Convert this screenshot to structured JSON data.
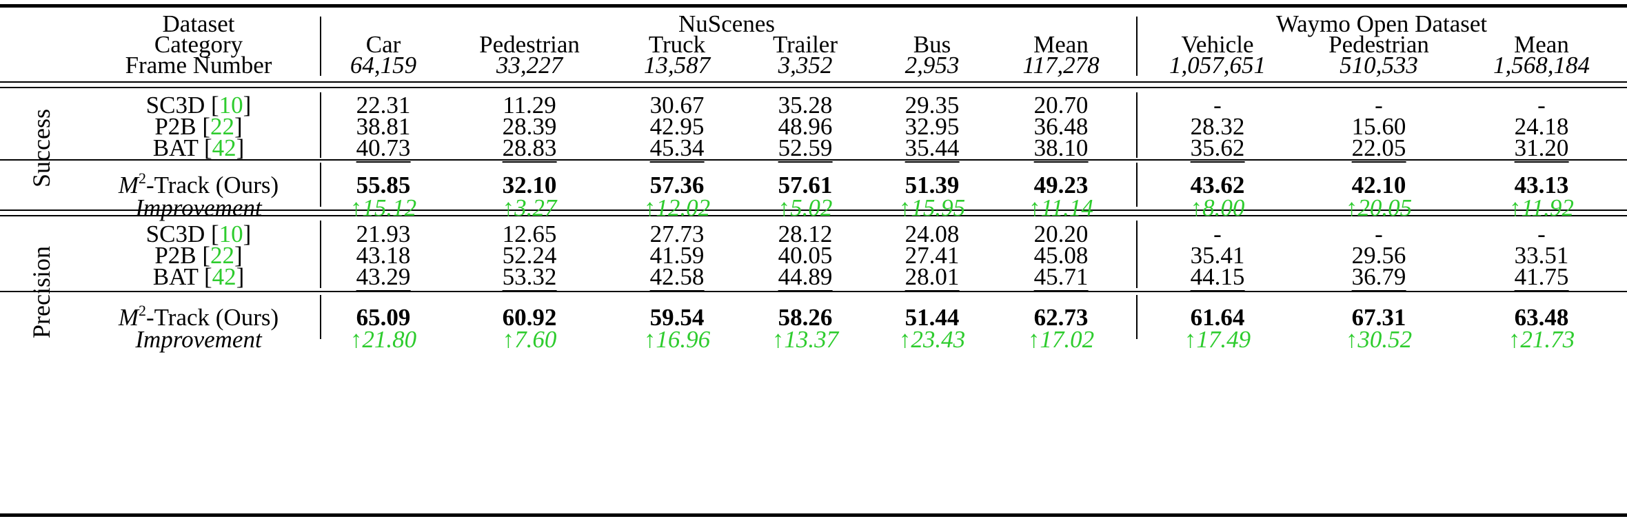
{
  "header": {
    "dataset_label": "Dataset",
    "category_label": "Category",
    "frame_label": "Frame Number",
    "group_nuscenes": "NuScenes",
    "group_waymo": "Waymo Open Dataset",
    "columns": [
      {
        "name": "Car",
        "frames": "64,159"
      },
      {
        "name": "Pedestrian",
        "frames": "33,227"
      },
      {
        "name": "Truck",
        "frames": "13,587"
      },
      {
        "name": "Trailer",
        "frames": "3,352"
      },
      {
        "name": "Bus",
        "frames": "2,953"
      },
      {
        "name": "Mean",
        "frames": "117,278"
      },
      {
        "name": "Vehicle",
        "frames": "1,057,651"
      },
      {
        "name": "Pedestrian",
        "frames": "510,533"
      },
      {
        "name": "Mean",
        "frames": "1,568,184"
      }
    ]
  },
  "sections": [
    {
      "label": "Success",
      "rows": [
        {
          "method": "SC3D",
          "ref": "10",
          "values": [
            "22.31",
            "11.29",
            "30.67",
            "35.28",
            "29.35",
            "20.70",
            "-",
            "-",
            "-"
          ]
        },
        {
          "method": "P2B",
          "ref": "22",
          "values": [
            "38.81",
            "28.39",
            "42.95",
            "48.96",
            "32.95",
            "36.48",
            "28.32",
            "15.60",
            "24.18"
          ]
        },
        {
          "method": "BAT",
          "ref": "42",
          "values": [
            "40.73",
            "28.83",
            "45.34",
            "52.59",
            "35.44",
            "38.10",
            "35.62",
            "22.05",
            "31.20"
          ]
        }
      ],
      "ours": {
        "method_sym": "M",
        "method_sup": "2",
        "method_rest": "-Track (Ours)",
        "values": [
          "55.85",
          "32.10",
          "57.36",
          "57.61",
          "51.39",
          "49.23",
          "43.62",
          "42.10",
          "43.13"
        ]
      },
      "improvement": {
        "label": "Improvement",
        "values": [
          "↑15.12",
          "↑3.27",
          "↑12.02",
          "↑5.02",
          "↑15.95",
          "↑11.14",
          "↑8.00",
          "↑20.05",
          "↑11.92"
        ]
      }
    },
    {
      "label": "Precision",
      "rows": [
        {
          "method": "SC3D",
          "ref": "10",
          "values": [
            "21.93",
            "12.65",
            "27.73",
            "28.12",
            "24.08",
            "20.20",
            "-",
            "-",
            "-"
          ]
        },
        {
          "method": "P2B",
          "ref": "22",
          "values": [
            "43.18",
            "52.24",
            "41.59",
            "40.05",
            "27.41",
            "45.08",
            "35.41",
            "29.56",
            "33.51"
          ]
        },
        {
          "method": "BAT",
          "ref": "42",
          "values": [
            "43.29",
            "53.32",
            "42.58",
            "44.89",
            "28.01",
            "45.71",
            "44.15",
            "36.79",
            "41.75"
          ]
        }
      ],
      "ours": {
        "method_sym": "M",
        "method_sup": "2",
        "method_rest": "-Track (Ours)",
        "values": [
          "65.09",
          "60.92",
          "59.54",
          "58.26",
          "51.44",
          "62.73",
          "61.64",
          "67.31",
          "63.48"
        ]
      },
      "improvement": {
        "label": "Improvement",
        "values": [
          "↑21.80",
          "↑7.60",
          "↑16.96",
          "↑13.37",
          "↑23.43",
          "↑17.02",
          "↑17.49",
          "↑30.52",
          "↑21.73"
        ]
      }
    }
  ],
  "colors": {
    "accent_green": "#2ecc2e",
    "text": "#000000"
  }
}
